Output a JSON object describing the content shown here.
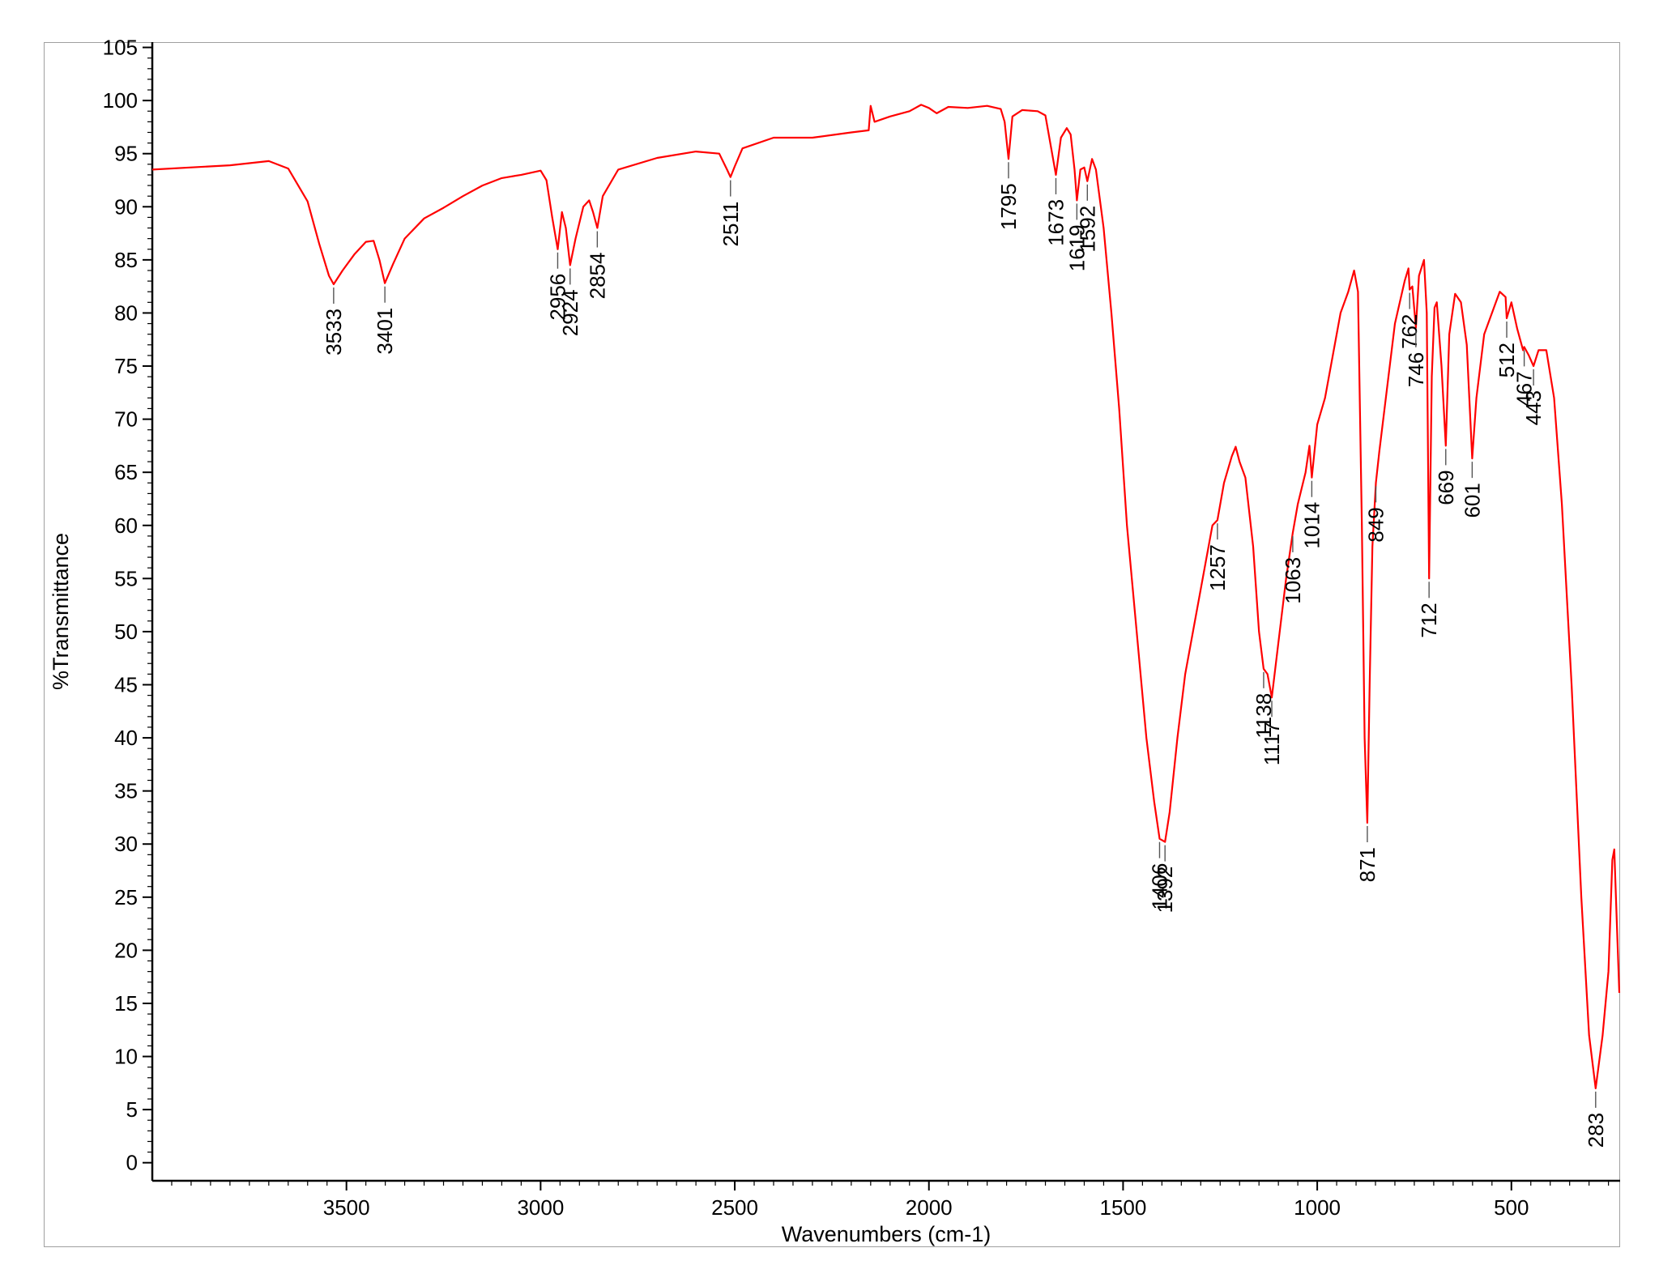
{
  "chart_data": {
    "type": "line",
    "title": "",
    "xlabel": "Wavenumbers (cm-1)",
    "ylabel": "%Transmittance",
    "xlim": [
      4000,
      220
    ],
    "ylim": [
      -1.7,
      105.5
    ],
    "x_reversed": true,
    "x_ticks": [
      3500,
      3000,
      2500,
      2000,
      1500,
      1000,
      500
    ],
    "y_ticks": [
      0,
      5,
      10,
      15,
      20,
      25,
      30,
      35,
      40,
      45,
      50,
      55,
      60,
      65,
      70,
      75,
      80,
      85,
      90,
      95,
      100,
      105
    ],
    "grid": false,
    "legend": "none",
    "series": [
      {
        "color": "#ff0000",
        "points": [
          [
            4000,
            93.5
          ],
          [
            3800,
            93.9
          ],
          [
            3700,
            94.3
          ],
          [
            3650,
            93.6
          ],
          [
            3600,
            90.5
          ],
          [
            3570,
            86.5
          ],
          [
            3545,
            83.5
          ],
          [
            3533,
            82.7
          ],
          [
            3510,
            84.0
          ],
          [
            3480,
            85.5
          ],
          [
            3450,
            86.7
          ],
          [
            3430,
            86.8
          ],
          [
            3415,
            85.0
          ],
          [
            3401,
            82.8
          ],
          [
            3380,
            84.6
          ],
          [
            3350,
            87.0
          ],
          [
            3300,
            88.9
          ],
          [
            3250,
            89.9
          ],
          [
            3200,
            91.0
          ],
          [
            3150,
            92.0
          ],
          [
            3100,
            92.7
          ],
          [
            3050,
            93.0
          ],
          [
            3000,
            93.4
          ],
          [
            2985,
            92.5
          ],
          [
            2970,
            89.0
          ],
          [
            2956,
            86.0
          ],
          [
            2945,
            89.5
          ],
          [
            2935,
            88.0
          ],
          [
            2924,
            84.5
          ],
          [
            2910,
            87.0
          ],
          [
            2890,
            90.0
          ],
          [
            2875,
            90.6
          ],
          [
            2865,
            89.5
          ],
          [
            2854,
            88.0
          ],
          [
            2840,
            91.0
          ],
          [
            2800,
            93.5
          ],
          [
            2700,
            94.6
          ],
          [
            2600,
            95.2
          ],
          [
            2540,
            95.0
          ],
          [
            2520,
            93.5
          ],
          [
            2511,
            92.8
          ],
          [
            2500,
            93.8
          ],
          [
            2480,
            95.5
          ],
          [
            2400,
            96.5
          ],
          [
            2300,
            96.5
          ],
          [
            2200,
            97.0
          ],
          [
            2155,
            97.2
          ],
          [
            2150,
            99.5
          ],
          [
            2140,
            98.0
          ],
          [
            2100,
            98.5
          ],
          [
            2050,
            99.0
          ],
          [
            2020,
            99.6
          ],
          [
            2000,
            99.3
          ],
          [
            1980,
            98.8
          ],
          [
            1950,
            99.4
          ],
          [
            1900,
            99.3
          ],
          [
            1850,
            99.5
          ],
          [
            1815,
            99.2
          ],
          [
            1805,
            98.0
          ],
          [
            1795,
            94.5
          ],
          [
            1785,
            98.5
          ],
          [
            1760,
            99.1
          ],
          [
            1720,
            99.0
          ],
          [
            1700,
            98.6
          ],
          [
            1685,
            95.5
          ],
          [
            1673,
            93.0
          ],
          [
            1660,
            96.5
          ],
          [
            1645,
            97.4
          ],
          [
            1635,
            96.8
          ],
          [
            1625,
            93.5
          ],
          [
            1619,
            90.6
          ],
          [
            1610,
            93.5
          ],
          [
            1600,
            93.7
          ],
          [
            1592,
            92.4
          ],
          [
            1580,
            94.5
          ],
          [
            1570,
            93.5
          ],
          [
            1550,
            88.0
          ],
          [
            1530,
            80.0
          ],
          [
            1510,
            71.0
          ],
          [
            1490,
            60.0
          ],
          [
            1460,
            48.0
          ],
          [
            1440,
            40.0
          ],
          [
            1420,
            34.0
          ],
          [
            1406,
            30.5
          ],
          [
            1392,
            30.2
          ],
          [
            1380,
            33.0
          ],
          [
            1360,
            40.0
          ],
          [
            1340,
            46.0
          ],
          [
            1320,
            50.0
          ],
          [
            1290,
            56.0
          ],
          [
            1270,
            60.0
          ],
          [
            1257,
            60.5
          ],
          [
            1240,
            64.0
          ],
          [
            1220,
            66.5
          ],
          [
            1210,
            67.4
          ],
          [
            1200,
            66.0
          ],
          [
            1185,
            64.5
          ],
          [
            1165,
            58.0
          ],
          [
            1150,
            50.0
          ],
          [
            1138,
            46.5
          ],
          [
            1128,
            46.0
          ],
          [
            1117,
            43.8
          ],
          [
            1100,
            49.0
          ],
          [
            1080,
            55.0
          ],
          [
            1063,
            59.3
          ],
          [
            1050,
            62.0
          ],
          [
            1030,
            65.0
          ],
          [
            1020,
            67.5
          ],
          [
            1014,
            64.5
          ],
          [
            1000,
            69.5
          ],
          [
            980,
            72.0
          ],
          [
            960,
            76.0
          ],
          [
            940,
            80.0
          ],
          [
            920,
            82.0
          ],
          [
            905,
            84.0
          ],
          [
            895,
            82.0
          ],
          [
            885,
            60.0
          ],
          [
            878,
            40.0
          ],
          [
            871,
            32.0
          ],
          [
            865,
            45.0
          ],
          [
            858,
            58.0
          ],
          [
            849,
            64.0
          ],
          [
            840,
            67.0
          ],
          [
            820,
            73.0
          ],
          [
            800,
            79.0
          ],
          [
            775,
            83.0
          ],
          [
            765,
            84.2
          ],
          [
            762,
            82.2
          ],
          [
            755,
            82.5
          ],
          [
            746,
            78.6
          ],
          [
            738,
            83.5
          ],
          [
            725,
            85.0
          ],
          [
            718,
            80.0
          ],
          [
            712,
            55.0
          ],
          [
            705,
            74.0
          ],
          [
            698,
            80.5
          ],
          [
            692,
            81.0
          ],
          [
            680,
            75.0
          ],
          [
            669,
            67.5
          ],
          [
            660,
            78.0
          ],
          [
            645,
            81.8
          ],
          [
            630,
            81.0
          ],
          [
            615,
            77.0
          ],
          [
            601,
            66.3
          ],
          [
            590,
            72.0
          ],
          [
            570,
            78.0
          ],
          [
            545,
            80.5
          ],
          [
            530,
            82.0
          ],
          [
            515,
            81.5
          ],
          [
            512,
            79.5
          ],
          [
            500,
            81.0
          ],
          [
            485,
            78.5
          ],
          [
            470,
            76.5
          ],
          [
            467,
            76.8
          ],
          [
            455,
            76.0
          ],
          [
            443,
            75.0
          ],
          [
            430,
            76.5
          ],
          [
            410,
            76.5
          ],
          [
            390,
            72.0
          ],
          [
            370,
            62.0
          ],
          [
            345,
            45.0
          ],
          [
            320,
            25.0
          ],
          [
            300,
            12.0
          ],
          [
            283,
            7.0
          ],
          [
            265,
            12.0
          ],
          [
            250,
            18.0
          ],
          [
            240,
            28.5
          ],
          [
            235,
            29.5
          ],
          [
            228,
            22.0
          ],
          [
            222,
            16.0
          ]
        ]
      }
    ],
    "peak_labels": [
      {
        "text": "3533",
        "x": 3533,
        "y": 82.7
      },
      {
        "text": "3401",
        "x": 3401,
        "y": 82.8
      },
      {
        "text": "2956",
        "x": 2956,
        "y": 86.0
      },
      {
        "text": "2924",
        "x": 2924,
        "y": 84.5
      },
      {
        "text": "2854",
        "x": 2854,
        "y": 88.0
      },
      {
        "text": "2511",
        "x": 2511,
        "y": 92.8
      },
      {
        "text": "1795",
        "x": 1795,
        "y": 94.5
      },
      {
        "text": "1673",
        "x": 1673,
        "y": 93.0
      },
      {
        "text": "1619",
        "x": 1619,
        "y": 90.6
      },
      {
        "text": "1592",
        "x": 1592,
        "y": 92.4
      },
      {
        "text": "1406",
        "x": 1406,
        "y": 30.5
      },
      {
        "text": "1392",
        "x": 1392,
        "y": 30.2
      },
      {
        "text": "1257",
        "x": 1257,
        "y": 60.5
      },
      {
        "text": "1138",
        "x": 1138,
        "y": 46.5
      },
      {
        "text": "1117",
        "x": 1117,
        "y": 43.8
      },
      {
        "text": "1063",
        "x": 1063,
        "y": 59.3
      },
      {
        "text": "1014",
        "x": 1014,
        "y": 64.5
      },
      {
        "text": "871",
        "x": 871,
        "y": 32.0
      },
      {
        "text": "849",
        "x": 849,
        "y": 64.0
      },
      {
        "text": "762",
        "x": 762,
        "y": 82.2
      },
      {
        "text": "746",
        "x": 746,
        "y": 78.6
      },
      {
        "text": "712",
        "x": 712,
        "y": 55.0
      },
      {
        "text": "669",
        "x": 669,
        "y": 67.5
      },
      {
        "text": "601",
        "x": 601,
        "y": 66.3
      },
      {
        "text": "512",
        "x": 512,
        "y": 79.5
      },
      {
        "text": "467",
        "x": 467,
        "y": 76.8
      },
      {
        "text": "443",
        "x": 443,
        "y": 75.0
      },
      {
        "text": "283",
        "x": 283,
        "y": 7.0
      }
    ]
  }
}
